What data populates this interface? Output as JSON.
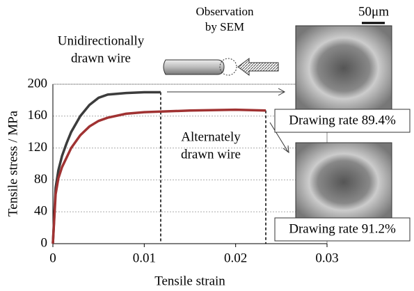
{
  "chart_data": {
    "type": "line",
    "x_label": "Tensile strain",
    "y_label": "Tensile stress / MPa",
    "xlim": [
      0,
      0.03
    ],
    "xticks": [
      0,
      0.01,
      0.02,
      0.03
    ],
    "ylim": [
      0,
      200
    ],
    "yticks": [
      0,
      40,
      80,
      120,
      160,
      200
    ],
    "grid": true,
    "series": [
      {
        "color": "#3c3c3c",
        "x": [
          0,
          0.0003,
          0.0006,
          0.001,
          0.0015,
          0.002,
          0.003,
          0.004,
          0.005,
          0.006,
          0.008,
          0.01,
          0.0118
        ],
        "values": [
          0,
          70,
          92,
          110,
          126,
          140,
          160,
          174,
          183,
          187,
          189,
          190,
          190
        ]
      },
      {
        "color": "#a03232",
        "x": [
          0,
          0.0003,
          0.0006,
          0.001,
          0.0015,
          0.002,
          0.003,
          0.004,
          0.005,
          0.006,
          0.008,
          0.01,
          0.015,
          0.02,
          0.0233
        ],
        "values": [
          0,
          62,
          82,
          96,
          108,
          120,
          136,
          147,
          154,
          158,
          163,
          165,
          167,
          168,
          167
        ]
      }
    ],
    "annotations": [
      [
        "Unidirectionally",
        "drawn wire"
      ],
      [
        "Alternately",
        "drawn wire"
      ],
      [
        "Observation",
        "by SEM"
      ]
    ],
    "image_labels": [
      "Drawing rate 89.4%",
      "Drawing rate 91.2%"
    ],
    "scale_bar": "50μm"
  }
}
